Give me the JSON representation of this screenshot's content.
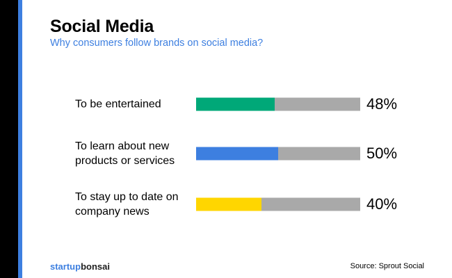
{
  "header": {
    "title": "Social Media",
    "subtitle": "Why consumers follow brands on social media?"
  },
  "colors": {
    "accent_blue": "#3d7fe0",
    "edge_black": "#000000",
    "track_gray": "#a9a9a9",
    "logo_startup": "#3d7fe0",
    "logo_bonsai": "#1f1f1f"
  },
  "chart_data": {
    "type": "bar",
    "orientation": "horizontal",
    "categories": [
      "To be entertained",
      "To learn about new products or services",
      "To stay up to date on company news"
    ],
    "values": [
      48,
      50,
      40
    ],
    "value_labels": [
      "48%",
      "50%",
      "40%"
    ],
    "xlim": [
      0,
      100
    ],
    "bar_colors": [
      "#00a878",
      "#3d7fe0",
      "#ffd600"
    ],
    "title": "Social Media",
    "subtitle": "Why consumers follow brands on social media?",
    "grid": false
  },
  "rows": [
    {
      "label_lines": [
        "To be entertained"
      ]
    },
    {
      "label_lines": [
        "To learn about new",
        "products or services"
      ]
    },
    {
      "label_lines": [
        "To stay up to date on",
        "company news"
      ]
    }
  ],
  "footer": {
    "logo_part1": "startup",
    "logo_part2": "bonsai",
    "source": "Source: Sprout Social"
  }
}
